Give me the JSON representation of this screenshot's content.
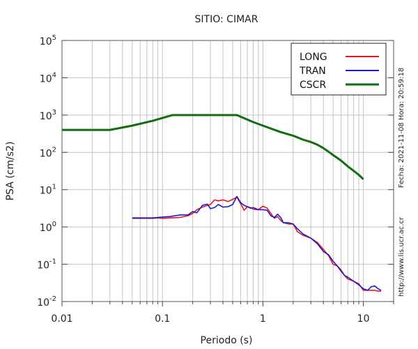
{
  "chart_data": {
    "type": "line",
    "title": "SITIO: CIMAR",
    "xlabel": "Periodo (s)",
    "ylabel": "PSA (cm/s2)",
    "x_scale": "log",
    "y_scale": "log",
    "xlim": [
      0.01,
      20
    ],
    "ylim": [
      0.01,
      100000
    ],
    "grid": "on",
    "legend_position": "top-right",
    "x_ticks": [
      {
        "value": 0.01,
        "label": "0.01"
      },
      {
        "value": 0.1,
        "label": "0.1"
      },
      {
        "value": 1,
        "label": "1"
      },
      {
        "value": 10,
        "label": "10"
      }
    ],
    "y_ticks": [
      {
        "value": 0.01,
        "base": "10",
        "exp": "-2"
      },
      {
        "value": 0.1,
        "base": "10",
        "exp": "-1"
      },
      {
        "value": 1,
        "base": "10",
        "exp": "0"
      },
      {
        "value": 10,
        "base": "10",
        "exp": "1"
      },
      {
        "value": 100,
        "base": "10",
        "exp": "2"
      },
      {
        "value": 1000,
        "base": "10",
        "exp": "3"
      },
      {
        "value": 10000,
        "base": "10",
        "exp": "4"
      },
      {
        "value": 100000,
        "base": "10",
        "exp": "5"
      }
    ],
    "series": [
      {
        "name": "LONG",
        "color": "#e8141c",
        "points": [
          [
            0.05,
            1.7
          ],
          [
            0.06,
            1.7
          ],
          [
            0.07,
            1.7
          ],
          [
            0.08,
            1.7
          ],
          [
            0.09,
            1.75
          ],
          [
            0.1,
            1.7
          ],
          [
            0.12,
            1.75
          ],
          [
            0.15,
            1.8
          ],
          [
            0.18,
            2.0
          ],
          [
            0.2,
            2.3
          ],
          [
            0.22,
            2.9
          ],
          [
            0.25,
            3.4
          ],
          [
            0.28,
            3.8
          ],
          [
            0.3,
            4.0
          ],
          [
            0.33,
            5.3
          ],
          [
            0.36,
            5.0
          ],
          [
            0.4,
            5.3
          ],
          [
            0.45,
            4.8
          ],
          [
            0.5,
            5.5
          ],
          [
            0.55,
            6.3
          ],
          [
            0.6,
            4.2
          ],
          [
            0.65,
            2.8
          ],
          [
            0.7,
            3.5
          ],
          [
            0.75,
            3.3
          ],
          [
            0.8,
            3.0
          ],
          [
            0.9,
            2.9
          ],
          [
            1.0,
            3.6
          ],
          [
            1.1,
            3.2
          ],
          [
            1.2,
            2.3
          ],
          [
            1.3,
            1.7
          ],
          [
            1.4,
            1.9
          ],
          [
            1.5,
            1.5
          ],
          [
            1.6,
            1.3
          ],
          [
            1.8,
            1.2
          ],
          [
            2.0,
            1.2
          ],
          [
            2.2,
            0.75
          ],
          [
            2.5,
            0.6
          ],
          [
            3.0,
            0.5
          ],
          [
            3.5,
            0.38
          ],
          [
            4.0,
            0.25
          ],
          [
            4.5,
            0.17
          ],
          [
            5.0,
            0.1
          ],
          [
            5.5,
            0.09
          ],
          [
            6.0,
            0.07
          ],
          [
            6.5,
            0.05
          ],
          [
            7.0,
            0.04
          ],
          [
            8.0,
            0.035
          ],
          [
            9.0,
            0.03
          ],
          [
            10.0,
            0.02
          ],
          [
            11.0,
            0.02
          ],
          [
            12.0,
            0.02
          ],
          [
            13.0,
            0.02
          ],
          [
            14.0,
            0.019
          ],
          [
            15.0,
            0.019
          ]
        ]
      },
      {
        "name": "TRAN",
        "color": "#1a1ad4",
        "points": [
          [
            0.05,
            1.75
          ],
          [
            0.06,
            1.75
          ],
          [
            0.07,
            1.75
          ],
          [
            0.08,
            1.75
          ],
          [
            0.09,
            1.8
          ],
          [
            0.1,
            1.85
          ],
          [
            0.12,
            1.9
          ],
          [
            0.15,
            2.1
          ],
          [
            0.18,
            2.1
          ],
          [
            0.2,
            2.6
          ],
          [
            0.22,
            2.4
          ],
          [
            0.25,
            3.8
          ],
          [
            0.28,
            4.1
          ],
          [
            0.3,
            3.1
          ],
          [
            0.33,
            3.3
          ],
          [
            0.36,
            4.0
          ],
          [
            0.4,
            3.4
          ],
          [
            0.45,
            3.5
          ],
          [
            0.5,
            4.0
          ],
          [
            0.55,
            6.6
          ],
          [
            0.6,
            4.5
          ],
          [
            0.65,
            3.8
          ],
          [
            0.7,
            3.5
          ],
          [
            0.75,
            3.2
          ],
          [
            0.8,
            3.3
          ],
          [
            0.9,
            2.9
          ],
          [
            1.0,
            2.9
          ],
          [
            1.1,
            2.8
          ],
          [
            1.2,
            2.0
          ],
          [
            1.3,
            1.8
          ],
          [
            1.4,
            2.2
          ],
          [
            1.5,
            1.8
          ],
          [
            1.6,
            1.3
          ],
          [
            1.8,
            1.3
          ],
          [
            2.0,
            1.2
          ],
          [
            2.2,
            0.9
          ],
          [
            2.5,
            0.65
          ],
          [
            3.0,
            0.5
          ],
          [
            3.5,
            0.35
          ],
          [
            4.0,
            0.22
          ],
          [
            4.5,
            0.18
          ],
          [
            5.0,
            0.12
          ],
          [
            5.5,
            0.09
          ],
          [
            6.0,
            0.065
          ],
          [
            6.5,
            0.05
          ],
          [
            7.0,
            0.045
          ],
          [
            8.0,
            0.035
          ],
          [
            9.0,
            0.028
          ],
          [
            10.0,
            0.022
          ],
          [
            11.0,
            0.02
          ],
          [
            12.0,
            0.025
          ],
          [
            13.0,
            0.026
          ],
          [
            14.0,
            0.022
          ],
          [
            15.0,
            0.02
          ]
        ]
      },
      {
        "name": "CSCR",
        "color": "#0f6e0f",
        "points": [
          [
            0.01,
            400
          ],
          [
            0.03,
            400
          ],
          [
            0.05,
            520
          ],
          [
            0.08,
            700
          ],
          [
            0.125,
            1000
          ],
          [
            0.55,
            1000
          ],
          [
            0.8,
            650
          ],
          [
            1.0,
            520
          ],
          [
            1.5,
            350
          ],
          [
            2.0,
            280
          ],
          [
            2.5,
            220
          ],
          [
            3.0,
            190
          ],
          [
            3.5,
            160
          ],
          [
            4.0,
            130
          ],
          [
            5.0,
            85
          ],
          [
            6.0,
            60
          ],
          [
            7.0,
            42
          ],
          [
            8.0,
            32
          ],
          [
            9.0,
            25
          ],
          [
            10.0,
            19
          ]
        ]
      }
    ]
  },
  "side_texts": {
    "fecha": "Fecha: 2021-11-08 Hora: 20:59:18",
    "url": "http://www.lis.ucr.ac.cr"
  }
}
